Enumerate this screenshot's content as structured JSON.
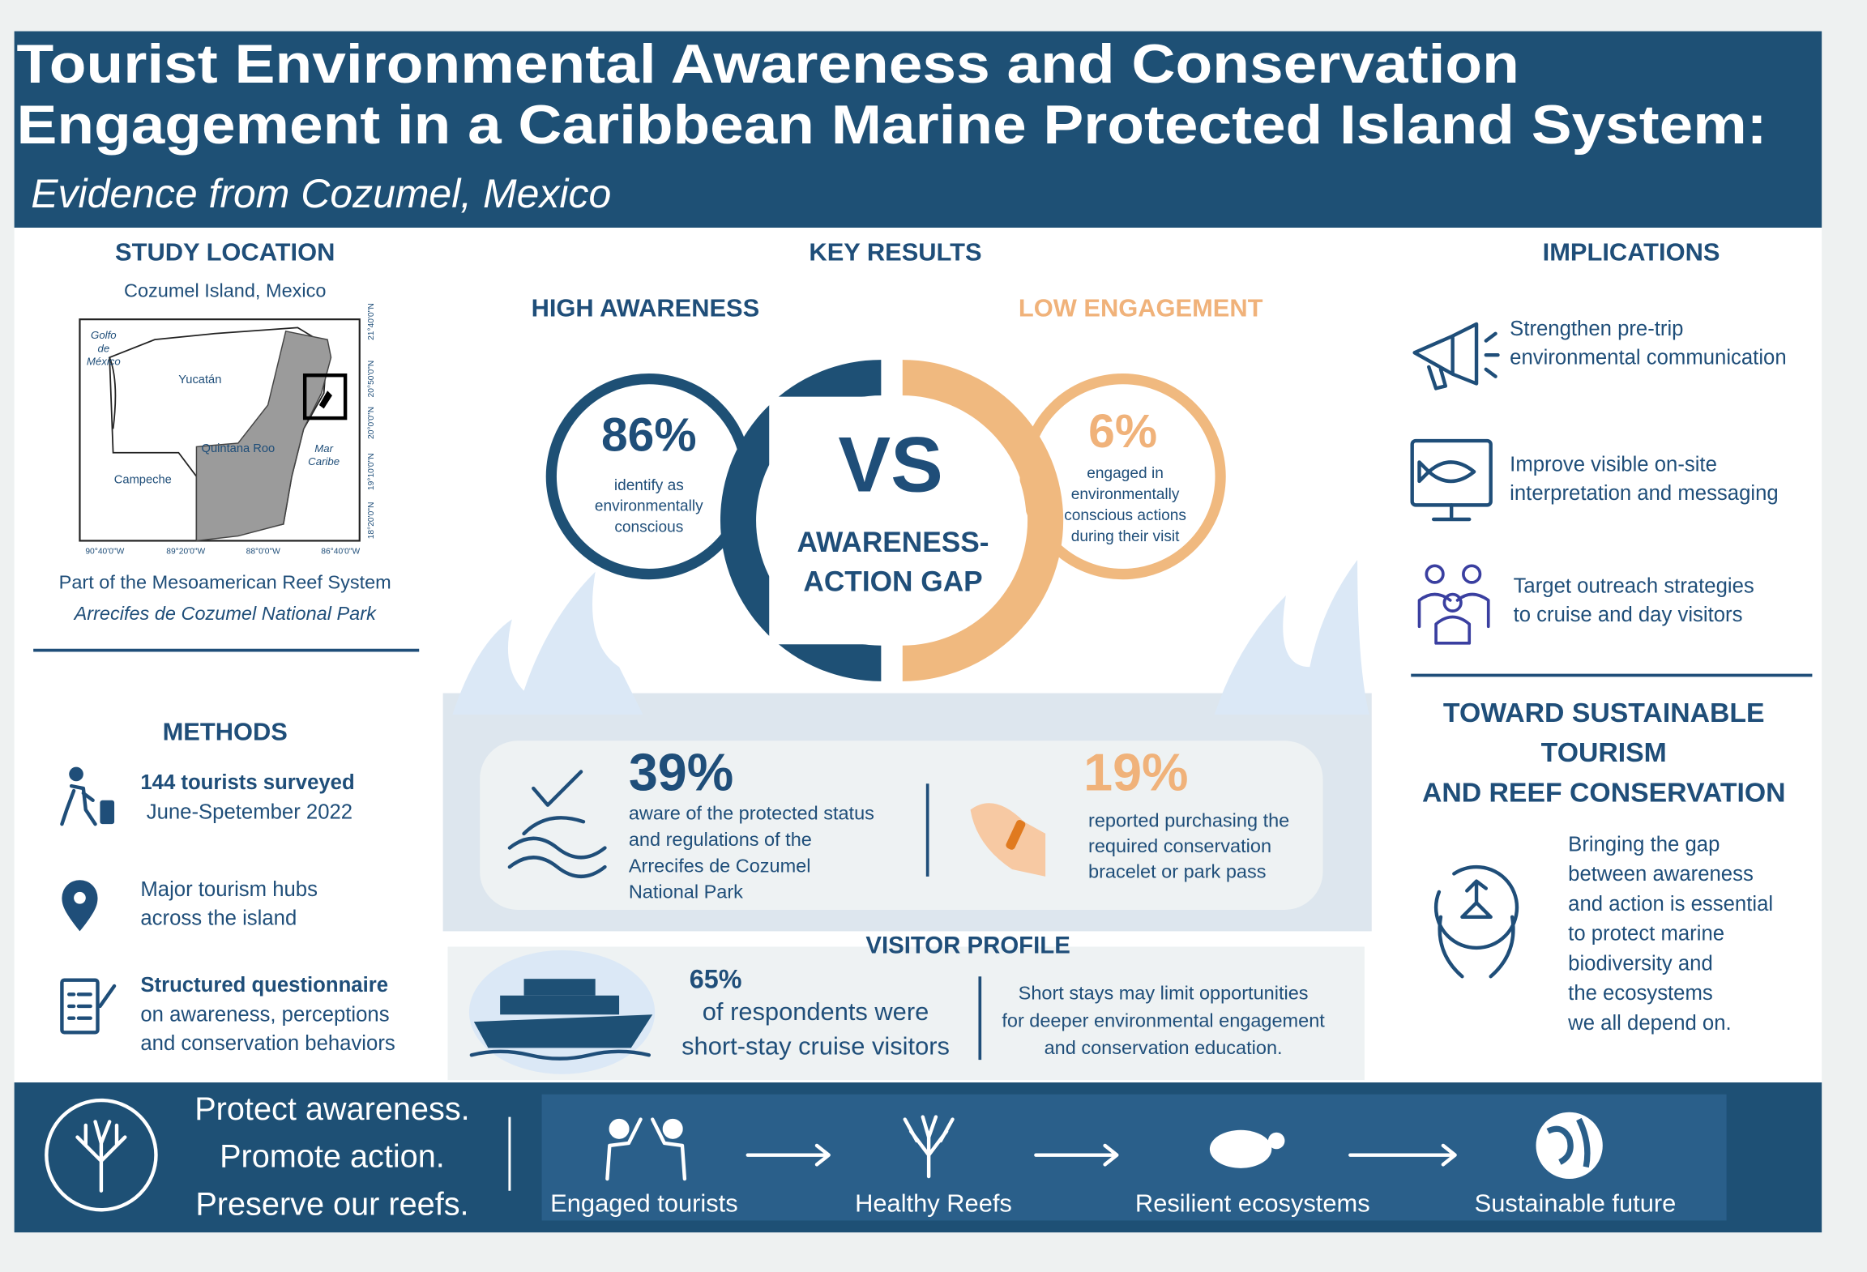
{
  "header": {
    "title_lines": [
      "Tourist Environmental Awareness and Conservation",
      "Engagement in a Caribbean Marine Protected Island System:"
    ],
    "subtitle": "Evidence from Cozumel, Mexico"
  },
  "study_location": {
    "heading": "STUDY LOCATION",
    "place": "Cozumel Island, Mexico",
    "map": {
      "gulf": [
        "Golfo",
        "de",
        "México"
      ],
      "yucatan": "Yucatán",
      "quintana_roo": "Quintana Roo",
      "campeche": "Campeche",
      "sea": [
        "Mar",
        "Caribe"
      ],
      "x_ticks": [
        "90°40'0\"W",
        "89°20'0\"W",
        "88°0'0\"W",
        "86°40'0\"W"
      ],
      "y_ticks": [
        "21°40'0\"N",
        "20°50'0\"N",
        "20°0'0\"N",
        "19°10'0\"N",
        "18°20'0\"N"
      ]
    },
    "caption": "Part of the Mesoamerican Reef System",
    "park": "Arrecifes de Cozumel National Park"
  },
  "methods": {
    "heading": "METHODS",
    "items": [
      {
        "lines": [
          "144 tourists surveyed",
          "June-Spetember 2022"
        ]
      },
      {
        "lines": [
          "Major tourism hubs",
          "across the island"
        ]
      },
      {
        "lines": [
          "Structured questionnaire",
          "on awareness, perceptions",
          "and conservation behaviors"
        ]
      }
    ]
  },
  "key_results": {
    "heading": "KEY RESULTS",
    "high": {
      "label": "HIGH AWARENESS",
      "stat": "86%",
      "lines": [
        "identify as",
        "environmentally",
        "conscious"
      ]
    },
    "low": {
      "label": "LOW ENGAGEMENT",
      "stat": "6%",
      "lines": [
        "engaged in",
        "environmentally",
        "conscious actions",
        "during their visit"
      ]
    },
    "vs": "VS",
    "gap_lines": [
      "AWARENESS-",
      "ACTION GAP"
    ],
    "park_awareness": {
      "stat": "39%",
      "lines": [
        "aware of the protected status",
        "and regulations of the",
        "Arrecifes de Cozumel",
        "National Park"
      ]
    },
    "bracelet": {
      "stat": "19%",
      "lines": [
        "reported purchasing the",
        "required conservation",
        "bracelet or park pass"
      ]
    }
  },
  "visitor_profile": {
    "heading": "VISITOR PROFILE",
    "stat": "65%",
    "lines": [
      "of respondents were",
      "short-stay cruise visitors"
    ],
    "note_lines": [
      "Short stays may limit opportunities",
      "for deeper environmental engagement",
      "and conservation education."
    ]
  },
  "implications": {
    "heading": "IMPLICATIONS",
    "items": [
      {
        "lines": [
          "Strengthen pre-trip",
          "environmental communication"
        ]
      },
      {
        "lines": [
          "Improve visible on-site",
          "interpretation and messaging"
        ]
      },
      {
        "lines": [
          "Target outreach strategies",
          "to cruise and day visitors"
        ]
      }
    ]
  },
  "toward": {
    "heading_lines": [
      "TOWARD SUSTAINABLE",
      "TOURISM",
      "AND REEF CONSERVATION"
    ],
    "body_lines": [
      "Bringing the gap",
      "between awareness",
      "and action is essential",
      "to protect marine",
      "biodiversity and",
      "the ecosystems",
      "we all depend on."
    ]
  },
  "footer": {
    "slogan_lines": [
      "Protect awareness.",
      "Promote action.",
      "Preserve our reefs."
    ],
    "steps": [
      "Engaged tourists",
      "Healthy Reefs",
      "Resilient ecosystems",
      "Sustainable future"
    ]
  }
}
